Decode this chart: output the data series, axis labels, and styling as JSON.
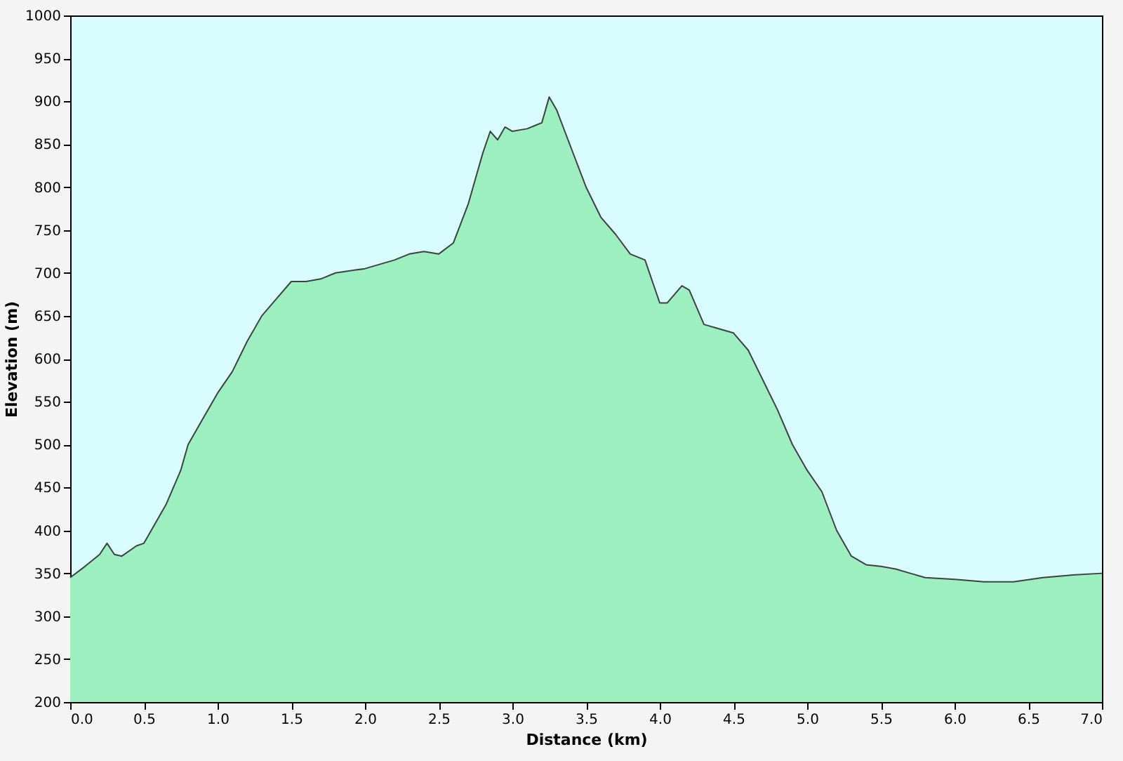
{
  "chart_data": {
    "type": "area",
    "xlabel": "Distance  (km)",
    "ylabel": "Elevation (m)",
    "series": [
      {
        "color": "#9cf0c0",
        "x": [
          0,
          0.1,
          0.2,
          0.25,
          0.3,
          0.35,
          0.45,
          0.5,
          0.55,
          0.65,
          0.75,
          0.8,
          0.9,
          1.0,
          1.1,
          1.2,
          1.3,
          1.4,
          1.5,
          1.6,
          1.7,
          1.8,
          2.0,
          2.2,
          2.3,
          2.4,
          2.5,
          2.6,
          2.7,
          2.8,
          2.85,
          2.9,
          2.95,
          3.0,
          3.1,
          3.2,
          3.25,
          3.3,
          3.4,
          3.5,
          3.6,
          3.7,
          3.8,
          3.9,
          4.0,
          4.05,
          4.15,
          4.2,
          4.3,
          4.4,
          4.5,
          4.6,
          4.7,
          4.8,
          4.9,
          5.0,
          5.1,
          5.2,
          5.3,
          5.4,
          5.5,
          5.6,
          5.7,
          5.8,
          6.0,
          6.2,
          6.4,
          6.6,
          6.8,
          7.0
        ],
        "values": [
          345,
          358,
          372,
          385,
          372,
          370,
          382,
          385,
          400,
          430,
          470,
          500,
          530,
          560,
          585,
          620,
          650,
          670,
          690,
          690,
          693,
          700,
          705,
          715,
          722,
          725,
          722,
          735,
          780,
          840,
          865,
          855,
          870,
          865,
          868,
          875,
          905,
          890,
          845,
          800,
          765,
          745,
          722,
          715,
          665,
          665,
          685,
          680,
          640,
          635,
          630,
          610,
          575,
          540,
          500,
          470,
          445,
          400,
          370,
          360,
          358,
          355,
          350,
          345,
          343,
          340,
          340,
          345,
          348,
          350
        ]
      }
    ],
    "xlim": [
      0,
      7
    ],
    "xticks": [
      {
        "value": 0,
        "label": "0.0"
      },
      {
        "value": 0.5,
        "label": "0.5"
      },
      {
        "value": 1,
        "label": "1.0"
      },
      {
        "value": 1.5,
        "label": "1.5"
      },
      {
        "value": 2,
        "label": "2.0"
      },
      {
        "value": 2.5,
        "label": "2.5"
      },
      {
        "value": 3,
        "label": "3.0"
      },
      {
        "value": 3.5,
        "label": "3.5"
      },
      {
        "value": 4,
        "label": "4.0"
      },
      {
        "value": 4.5,
        "label": "4.5"
      },
      {
        "value": 5,
        "label": "5.0"
      },
      {
        "value": 5.5,
        "label": "5.5"
      },
      {
        "value": 6,
        "label": "6.0"
      },
      {
        "value": 6.5,
        "label": "6.5"
      },
      {
        "value": 7,
        "label": "7.0"
      }
    ],
    "ylim": [
      200,
      1000
    ],
    "yticks": [
      200,
      250,
      300,
      350,
      400,
      450,
      500,
      550,
      600,
      650,
      700,
      750,
      800,
      850,
      900,
      950,
      1000
    ]
  }
}
